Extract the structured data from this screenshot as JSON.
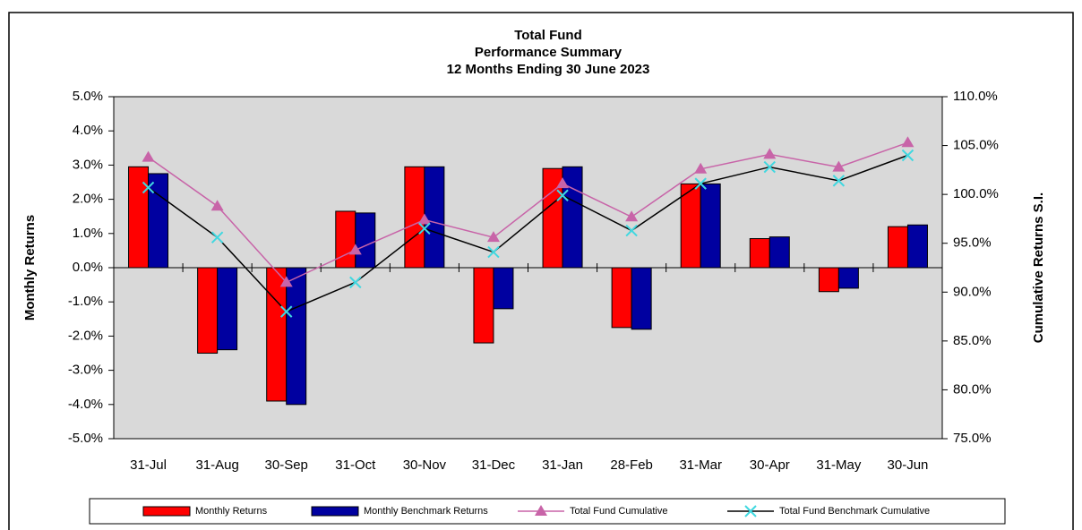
{
  "chart_data": {
    "type": "combo",
    "title": [
      "Total Fund",
      "Performance Summary",
      "12 Months Ending 30 June 2023"
    ],
    "ylabel": "Monthly Returns",
    "y2label": "Cumulative Returns S.I.",
    "categories": [
      "31-Jul",
      "31-Aug",
      "30-Sep",
      "31-Oct",
      "30-Nov",
      "31-Dec",
      "31-Jan",
      "28-Feb",
      "31-Mar",
      "30-Apr",
      "31-May",
      "30-Jun"
    ],
    "series": [
      {
        "name": "Monthly Returns",
        "type": "bar",
        "color": "#ff0000",
        "values": [
          2.95,
          -2.5,
          -3.9,
          1.65,
          2.95,
          -2.2,
          2.9,
          -1.75,
          2.45,
          0.85,
          -0.7,
          1.2
        ]
      },
      {
        "name": "Monthly Benchmark Returns",
        "type": "bar",
        "color": "#0000a0",
        "values": [
          2.75,
          -2.4,
          -4.0,
          1.6,
          2.95,
          -1.2,
          2.95,
          -1.8,
          2.45,
          0.9,
          -0.6,
          1.25
        ]
      },
      {
        "name": "Total Fund Cumulative",
        "type": "line",
        "axis": "y2",
        "color": "#c864a8",
        "marker": "triangle",
        "values": [
          103.8,
          98.8,
          91.0,
          94.3,
          97.4,
          95.6,
          101.1,
          97.7,
          102.6,
          104.1,
          102.8,
          105.3
        ]
      },
      {
        "name": "Total Fund Benchmark Cumulative",
        "type": "line",
        "axis": "y2",
        "color": "#000000",
        "marker_color": "#40d8e0",
        "marker": "x",
        "values": [
          100.7,
          95.6,
          88.0,
          91.0,
          96.5,
          94.1,
          99.9,
          96.3,
          101.1,
          102.8,
          101.4,
          104.0
        ]
      }
    ],
    "ylim": [
      -5,
      5
    ],
    "yticks": [
      {
        "value": -5,
        "label": "-5.0%"
      },
      {
        "value": -4,
        "label": "-4.0%"
      },
      {
        "value": -3,
        "label": "-3.0%"
      },
      {
        "value": -2,
        "label": "-2.0%"
      },
      {
        "value": -1,
        "label": "-1.0%"
      },
      {
        "value": 0,
        "label": "0.0%"
      },
      {
        "value": 1,
        "label": "1.0%"
      },
      {
        "value": 2,
        "label": "2.0%"
      },
      {
        "value": 3,
        "label": "3.0%"
      },
      {
        "value": 4,
        "label": "4.0%"
      },
      {
        "value": 5,
        "label": "5.0%"
      }
    ],
    "y2lim": [
      75,
      110
    ],
    "y2ticks": [
      {
        "value": 75,
        "label": "75.0%"
      },
      {
        "value": 80,
        "label": "80.0%"
      },
      {
        "value": 85,
        "label": "85.0%"
      },
      {
        "value": 90,
        "label": "90.0%"
      },
      {
        "value": 95,
        "label": "95.0%"
      },
      {
        "value": 100,
        "label": "100.0%"
      },
      {
        "value": 105,
        "label": "105.0%"
      },
      {
        "value": 110,
        "label": "110.0%"
      }
    ],
    "plot_background": "#d9d9d9",
    "legend": "bottom"
  }
}
